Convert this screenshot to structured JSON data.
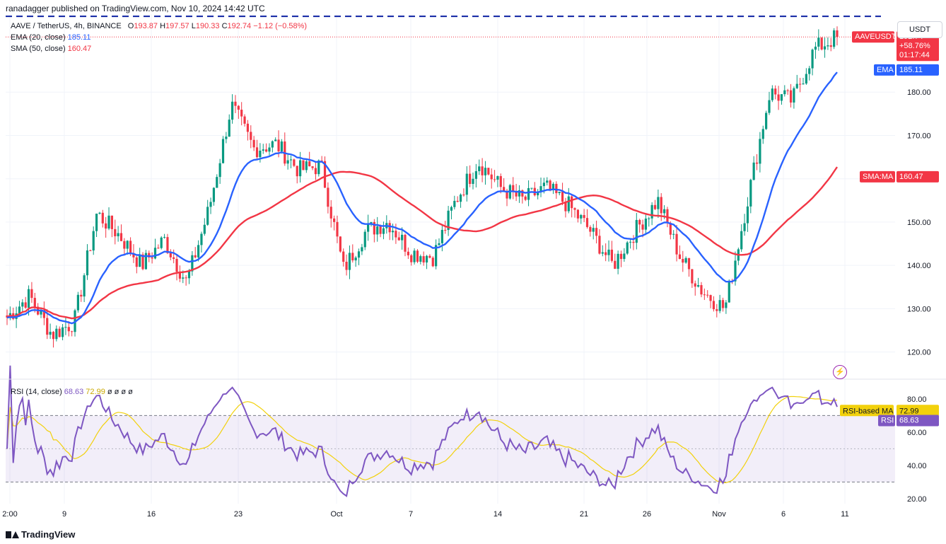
{
  "header": {
    "credit": "ranadagger published on TradingView.com, Nov 10, 2024 14:42 UTC",
    "symbol_line": "AAVE / TetherUS, 4h, BINANCE",
    "open_label": "O",
    "open": "193.87",
    "high_label": "H",
    "high": "197.57",
    "low_label": "L",
    "low": "190.33",
    "close_label": "C",
    "close": "192.74",
    "change": "−1.12 (−0.58%)",
    "ema_label": "EMA (20, close)",
    "ema_value": "185.11",
    "sma_label": "SMA (50, close)",
    "sma_value": "160.47",
    "rsi_label": "RSI (14, close)",
    "rsi_value": "68.63",
    "rsi_ma_value": "72.99",
    "rsi_extra": "ø ø ø ø"
  },
  "currency_button": "USDT",
  "price_tags": {
    "symbol": "AAVEUSDT",
    "price": "192.74",
    "pct": "+58.76%",
    "countdown": "01:17:44",
    "ema_tag": "EMA",
    "ema_value": "185.11",
    "sma_tag": "SMA:MA",
    "sma_value": "160.47",
    "rsi_ma_tag": "RSI-based MA",
    "rsi_ma_value": "72.99",
    "rsi_tag": "RSI",
    "rsi_value": "68.63"
  },
  "branding": "TradingView",
  "colors": {
    "up": "#089981",
    "down": "#f23645",
    "ema": "#2962ff",
    "sma": "#f23645",
    "rsi": "#7e57c2",
    "rsi_ma": "#f2d10c",
    "resistance": "#1a2ea8"
  },
  "chart_data": {
    "type": "candlestick",
    "symbol": "AAVE / TetherUS",
    "interval": "4h",
    "exchange": "BINANCE",
    "x_axis_ticks": [
      "2:00",
      "9",
      "16",
      "23",
      "Oct",
      "7",
      "14",
      "21",
      "26",
      "Nov",
      "6",
      "11"
    ],
    "price_axis_ticks": [
      120,
      130,
      140,
      150,
      160,
      170,
      180
    ],
    "price_range": [
      117,
      198
    ],
    "resistance_level": 197.5,
    "last_price": 192.74,
    "series_outline": [
      {
        "date": "Sep 3",
        "close": 128
      },
      {
        "date": "Sep 5",
        "close": 133
      },
      {
        "date": "Sep 7",
        "close": 124
      },
      {
        "date": "Sep 9",
        "close": 127
      },
      {
        "date": "Sep 11",
        "close": 152
      },
      {
        "date": "Sep 13",
        "close": 147
      },
      {
        "date": "Sep 15",
        "close": 140
      },
      {
        "date": "Sep 17",
        "close": 146
      },
      {
        "date": "Sep 19",
        "close": 136
      },
      {
        "date": "Sep 21",
        "close": 153
      },
      {
        "date": "Sep 23",
        "close": 177
      },
      {
        "date": "Sep 25",
        "close": 167
      },
      {
        "date": "Sep 27",
        "close": 168
      },
      {
        "date": "Sep 29",
        "close": 162
      },
      {
        "date": "Oct 1",
        "close": 163
      },
      {
        "date": "Oct 3",
        "close": 139
      },
      {
        "date": "Oct 5",
        "close": 148
      },
      {
        "date": "Oct 7",
        "close": 150
      },
      {
        "date": "Oct 9",
        "close": 143
      },
      {
        "date": "Oct 11",
        "close": 142
      },
      {
        "date": "Oct 13",
        "close": 155
      },
      {
        "date": "Oct 14",
        "close": 164
      },
      {
        "date": "Oct 16",
        "close": 158
      },
      {
        "date": "Oct 18",
        "close": 155
      },
      {
        "date": "Oct 20",
        "close": 158
      },
      {
        "date": "Oct 22",
        "close": 154
      },
      {
        "date": "Oct 24",
        "close": 148
      },
      {
        "date": "Oct 26",
        "close": 140
      },
      {
        "date": "Oct 28",
        "close": 148
      },
      {
        "date": "Oct 30",
        "close": 155
      },
      {
        "date": "Nov 1",
        "close": 142
      },
      {
        "date": "Nov 3",
        "close": 134
      },
      {
        "date": "Nov 5",
        "close": 130
      },
      {
        "date": "Nov 6",
        "close": 155
      },
      {
        "date": "Nov 7",
        "close": 180
      },
      {
        "date": "Nov 8",
        "close": 178
      },
      {
        "date": "Nov 9",
        "close": 190
      },
      {
        "date": "Nov 10",
        "close": 192.74
      }
    ],
    "ema20": {
      "name": "EMA (20, close)",
      "last": 185.11
    },
    "sma50": {
      "name": "SMA (50, close)",
      "last": 160.47
    },
    "rsi": {
      "name": "RSI (14, close)",
      "last": 68.63,
      "ma_last": 72.99,
      "axis_ticks": [
        20,
        40,
        60,
        80
      ],
      "bands": [
        30,
        70
      ],
      "mid": 50
    }
  }
}
